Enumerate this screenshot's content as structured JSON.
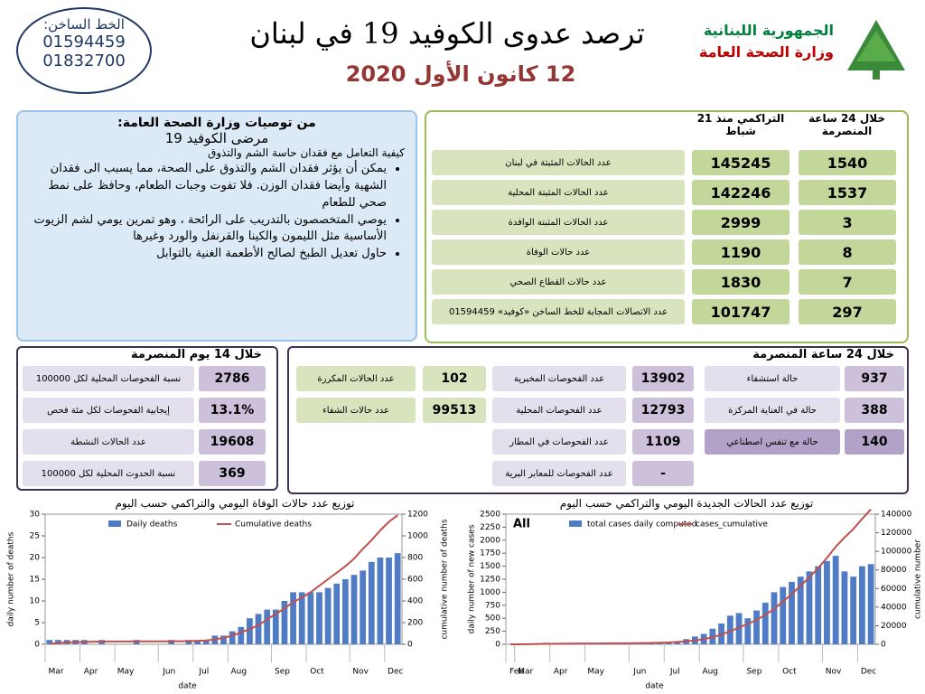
{
  "header": {
    "hotline_label": "الخط الساخن:",
    "hotlines": [
      "01594459",
      "01832700"
    ],
    "title": "ترصد عدوى الكوفيد 19 في لبنان",
    "date": "12 كانون الأول 2020",
    "republic": "الجمهورية اللبنانية",
    "ministry": "وزارة الصحة العامة"
  },
  "recommendations": {
    "title": "من توصيات وزارة الصحة العامة:",
    "subtitle": "مرضى الكوفيد 19",
    "intro": "كيفية التعامل مع فقدان حاسة الشم والتذوق",
    "bullets": [
      "يمكن أن يؤثر فقدان الشم والتذوق على الصحة، مما يسبب الى فقدان الشهية وأيضا فقدان الوزن. فلا تفوت وجبات الطعام، وحافظ على نمط صحي للطعام",
      "يوصي المتخصصون بالتدريب على الرائحة ، وهو تمرين يومي لشم الزيوت الأساسية مثل الليمون والكينا والقرنفل والورد وغيرها",
      "حاول تعديل الطبخ لصالح الأطعمة الغنية بالتوابل"
    ]
  },
  "summary": {
    "headers": [
      "خلال 24 ساعة المنصرمة",
      "التراكمي منذ 21 شباط"
    ],
    "rows": [
      {
        "label": "عدد الحالات المثبتة في لبنان",
        "cumulative": 145245,
        "last24": 1540
      },
      {
        "label": "عدد الحالات المثبتة المحلية",
        "cumulative": 142246,
        "last24": 1537
      },
      {
        "label": "عدد الحالات المثبتة الوافدة",
        "cumulative": 2999,
        "last24": 3
      },
      {
        "label": "عدد حالات الوفاة",
        "cumulative": 1190,
        "last24": 8
      },
      {
        "label": "عدد حالات القطاع الصحي",
        "cumulative": 1830,
        "last24": 7
      },
      {
        "label": "عدد الاتصالات المجابة للخط الساخن «كوفيد» 01594459",
        "cumulative": 101747,
        "last24": 297
      }
    ]
  },
  "last24": {
    "title": "خلال 24 ساعة المنصرمة",
    "columns": [
      [
        {
          "value": 937,
          "label": "حالة استشفاء"
        },
        {
          "value": 388,
          "label": "حالة في العناية المركزة"
        },
        {
          "value": 140,
          "label": "حالة مع تنفس اصطناعي"
        }
      ],
      [
        {
          "value": 13902,
          "label": "عدد الفحوصات المخبرية"
        },
        {
          "value": 12793,
          "label": "عدد الفحوصات المحلية"
        },
        {
          "value": 1109,
          "label": "عدد الفحوصات في المطار"
        },
        {
          "value": "-",
          "label": "عدد الفحوصات للمعابر البرية"
        }
      ],
      [
        {
          "value": 102,
          "label": "عدد الحالات المكررة"
        },
        {
          "value": 99513,
          "label": "عدد حالات الشفاء"
        }
      ]
    ]
  },
  "last14": {
    "title": "خلال 14 يوم المنصرمة",
    "rows": [
      {
        "value": 2786,
        "label": "نسبة الفحوصات المحلية لكل 100000"
      },
      {
        "value": "13.1%",
        "label": "إيجابية الفحوصات لكل مئة فحص"
      },
      {
        "value": 19608,
        "label": "عدد الحالات النشطة"
      },
      {
        "value": 369,
        "label": "نسبة الحدوث المحلية لكل 100000"
      }
    ]
  },
  "chart_data": [
    {
      "type": "combo",
      "title": "توزيع عدد حالات الوفاة اليومي والتراكمي حسب اليوم",
      "x_label": "date",
      "y_label": "daily number of deaths",
      "y2_label": "cumulative number of deaths",
      "categories": [
        "Mar",
        null,
        null,
        null,
        "Apr",
        null,
        null,
        null,
        "May",
        null,
        null,
        null,
        null,
        "Jun",
        null,
        null,
        null,
        "Jul",
        null,
        null,
        null,
        "Aug",
        null,
        null,
        null,
        null,
        "Sep",
        null,
        null,
        null,
        "Oct",
        null,
        null,
        null,
        null,
        "Nov",
        null,
        null,
        null,
        "Dec",
        null
      ],
      "ylim": [
        0,
        30
      ],
      "yticks": [
        0,
        5,
        10,
        15,
        20,
        25,
        30
      ],
      "y2lim": [
        0,
        1200
      ],
      "y2ticks": [
        0,
        200,
        400,
        600,
        800,
        1000,
        1200
      ],
      "series": [
        {
          "name": "Daily deaths",
          "type": "bar",
          "color": "#4f7cc4",
          "values": [
            1,
            1,
            1,
            1,
            1,
            0,
            1,
            0,
            0,
            0,
            1,
            0,
            0,
            0,
            1,
            0,
            1,
            1,
            1,
            2,
            2,
            3,
            4,
            6,
            7,
            8,
            8,
            10,
            12,
            12,
            12,
            12,
            13,
            14,
            15,
            16,
            17,
            19,
            20,
            20,
            21
          ]
        },
        {
          "name": "Cumulative deaths",
          "type": "line",
          "axis": "y2",
          "color": "#c0504d",
          "values": [
            4,
            10,
            18,
            20,
            22,
            24,
            25,
            26,
            26,
            26,
            27,
            27,
            27,
            27,
            28,
            28,
            29,
            31,
            35,
            45,
            60,
            80,
            110,
            140,
            175,
            230,
            280,
            330,
            390,
            430,
            480,
            540,
            600,
            660,
            720,
            790,
            880,
            960,
            1050,
            1130,
            1190
          ]
        }
      ]
    },
    {
      "type": "combo",
      "title": "توزيع عدد الحالات الجديدة اليومي والتراكمي حسب اليوم",
      "annotation": "All",
      "x_label": "date",
      "y_label": "daily number of new cases",
      "y2_label": "cumulative number",
      "categories": [
        "Feb",
        "Mar",
        null,
        null,
        null,
        "Apr",
        null,
        null,
        null,
        "May",
        null,
        null,
        null,
        null,
        "Jun",
        null,
        null,
        null,
        "Jul",
        null,
        null,
        null,
        "Aug",
        null,
        null,
        null,
        null,
        "Sep",
        null,
        null,
        null,
        "Oct",
        null,
        null,
        null,
        null,
        "Nov",
        null,
        null,
        null,
        "Dec",
        null
      ],
      "ylim": [
        0,
        2500
      ],
      "yticks": [
        0,
        250,
        500,
        750,
        1000,
        1250,
        1500,
        1750,
        2000,
        2250,
        2500
      ],
      "y2lim": [
        0,
        140000
      ],
      "y2ticks": [
        0,
        20000,
        40000,
        60000,
        80000,
        100000,
        120000,
        140000
      ],
      "series": [
        {
          "name": "total cases daily computed",
          "type": "bar",
          "color": "#4f7cc4",
          "values": [
            0,
            5,
            15,
            20,
            30,
            20,
            10,
            5,
            5,
            5,
            10,
            15,
            5,
            10,
            10,
            15,
            20,
            30,
            40,
            60,
            100,
            150,
            200,
            300,
            400,
            550,
            600,
            500,
            650,
            800,
            1000,
            1100,
            1200,
            1300,
            1400,
            1500,
            1600,
            1700,
            1400,
            1300,
            1500,
            1540
          ]
        },
        {
          "name": "cases_cumulative",
          "type": "line",
          "axis": "y2",
          "color": "#c0504d",
          "values": [
            0,
            50,
            150,
            300,
            450,
            600,
            700,
            750,
            800,
            850,
            900,
            1000,
            1050,
            1100,
            1200,
            1300,
            1500,
            1700,
            2000,
            2500,
            3200,
            4200,
            5500,
            7500,
            10500,
            14000,
            18000,
            22000,
            26000,
            32000,
            38000,
            46000,
            54000,
            63000,
            72000,
            82000,
            93000,
            105000,
            115000,
            124000,
            135000,
            145245
          ]
        }
      ]
    }
  ]
}
